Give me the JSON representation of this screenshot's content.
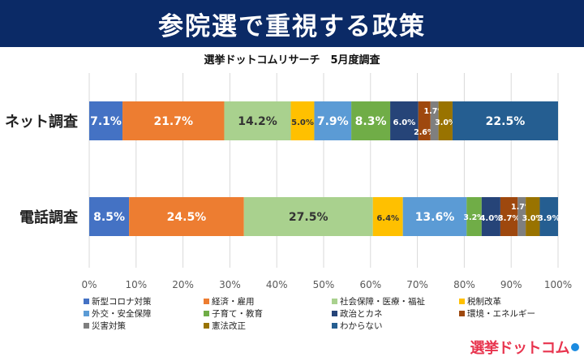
{
  "header": {
    "title": "参院選で重視する政策"
  },
  "logo": {
    "text": "選挙ドットコム"
  },
  "chart_data": {
    "type": "bar",
    "orientation": "horizontal",
    "stacked": true,
    "title": "選挙ドットコムリサーチ　5月度調査",
    "categories": [
      "ネット調査",
      "電話調査"
    ],
    "xlim": [
      0,
      100
    ],
    "x_ticks": [
      "0%",
      "10%",
      "20%",
      "30%",
      "40%",
      "50%",
      "60%",
      "70%",
      "80%",
      "90%",
      "100%"
    ],
    "grid": "vertical",
    "legend_position": "bottom",
    "series": [
      {
        "name": "新型コロナ対策",
        "color": "#4472c4",
        "values": [
          7.1,
          8.5
        ],
        "labels": [
          "7.1%",
          "8.5%"
        ]
      },
      {
        "name": "経済・雇用",
        "color": "#ed7d31",
        "values": [
          21.7,
          24.5
        ],
        "labels": [
          "21.7%",
          "24.5%"
        ]
      },
      {
        "name": "社会保障・医療・福祉",
        "color": "#a9d18e",
        "values": [
          14.2,
          27.5
        ],
        "labels": [
          "14.2%",
          "27.5%"
        ]
      },
      {
        "name": "税制改革",
        "color": "#ffc000",
        "values": [
          5.0,
          6.4
        ],
        "labels": [
          "5.0%",
          "6.4%"
        ]
      },
      {
        "name": "外交・安全保障",
        "color": "#5b9bd5",
        "values": [
          7.9,
          13.6
        ],
        "labels": [
          "7.9%",
          "13.6%"
        ]
      },
      {
        "name": "子育て・教育",
        "color": "#70ad47",
        "values": [
          8.3,
          3.2
        ],
        "labels": [
          "8.3%",
          "3.2%"
        ]
      },
      {
        "name": "政治とカネ",
        "color": "#264478",
        "values": [
          6.0,
          4.0
        ],
        "labels": [
          "6.0%",
          "4.0%"
        ]
      },
      {
        "name": "環境・エネルギー",
        "color": "#9e480e",
        "values": [
          2.6,
          3.7
        ],
        "labels": [
          "2.6%",
          "3.7%"
        ]
      },
      {
        "name": "災害対策",
        "color": "#7f7f7f",
        "values": [
          1.7,
          1.7
        ],
        "labels": [
          "1.7%",
          "1.7%"
        ]
      },
      {
        "name": "憲法改正",
        "color": "#997300",
        "values": [
          3.0,
          3.0
        ],
        "labels": [
          "3.0%",
          "3.0%"
        ]
      },
      {
        "name": "わからない",
        "color": "#255e91",
        "values": [
          22.5,
          3.9
        ],
        "labels": [
          "22.5%",
          "3.9%"
        ]
      }
    ]
  }
}
